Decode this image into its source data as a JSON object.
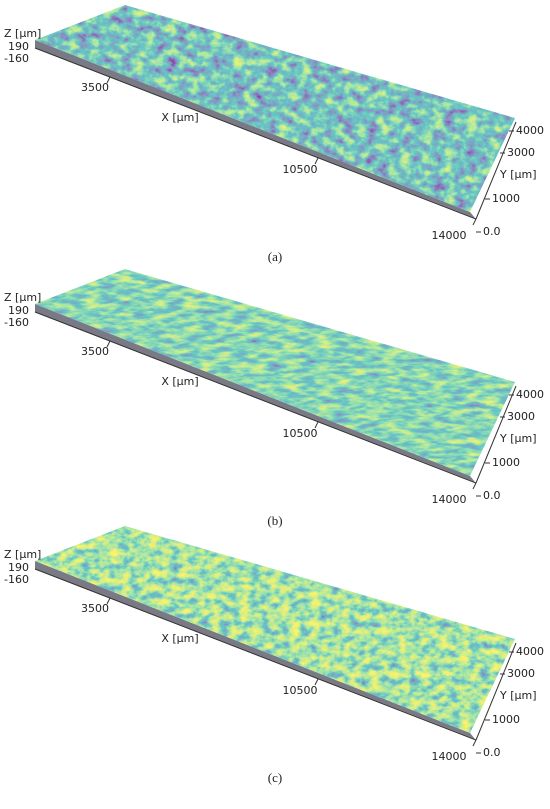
{
  "panels": [
    {
      "label": "(a)",
      "z_axis": {
        "title": "Z [µm]",
        "ticks": [
          "190",
          "-160"
        ]
      },
      "x_axis": {
        "title": "X [µm]",
        "ticks": [
          "3500",
          "10500",
          "14000"
        ]
      },
      "y_axis": {
        "title": "Y [µm]",
        "ticks": [
          "4000",
          "3000",
          "1000",
          "0.0"
        ]
      }
    },
    {
      "label": "(b)",
      "z_axis": {
        "title": "Z [µm]",
        "ticks": [
          "190",
          "-160"
        ]
      },
      "x_axis": {
        "title": "X [µm]",
        "ticks": [
          "3500",
          "10500",
          "14000"
        ]
      },
      "y_axis": {
        "title": "Y [µm]",
        "ticks": [
          "4000",
          "3000",
          "1000",
          "0.0"
        ]
      }
    },
    {
      "label": "(c)",
      "z_axis": {
        "title": "Z [µm]",
        "ticks": [
          "190",
          "-160"
        ]
      },
      "x_axis": {
        "title": "X [µm]",
        "ticks": [
          "3500",
          "10500",
          "14000"
        ]
      },
      "y_axis": {
        "title": "Y [µm]",
        "ticks": [
          "4000",
          "3000",
          "1000",
          "0.0"
        ]
      }
    }
  ]
}
